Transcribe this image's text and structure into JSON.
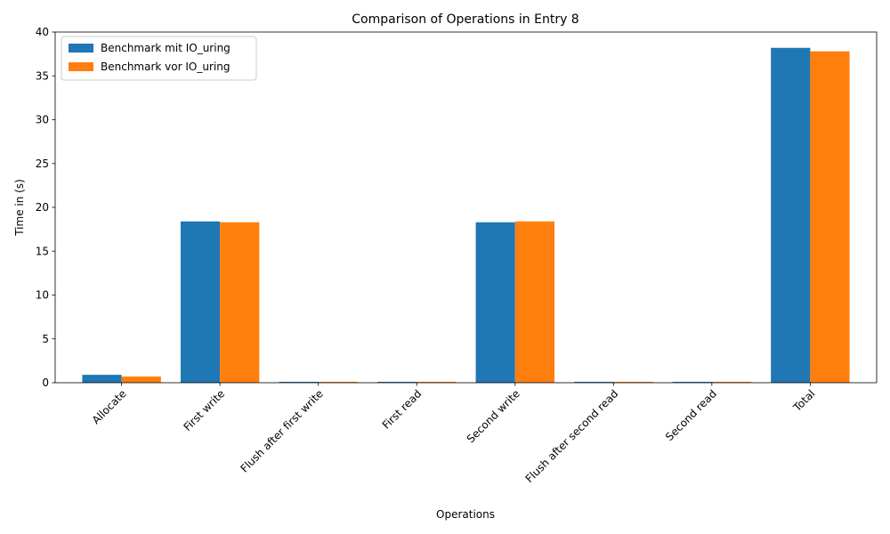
{
  "chart_data": {
    "type": "bar",
    "title": "Comparison of Operations in Entry 8",
    "xlabel": "Operations",
    "ylabel": "Time in (s)",
    "categories": [
      "Allocate",
      "First write",
      "Flush after first write",
      "First read",
      "Second write",
      "Flush after second read",
      "Second read",
      "Total"
    ],
    "series": [
      {
        "name": "Benchmark mit IO_uring",
        "color": "#1f77b4",
        "values": [
          0.9,
          18.4,
          0.1,
          0.1,
          18.3,
          0.1,
          0.1,
          38.2
        ]
      },
      {
        "name": "Benchmark vor IO_uring",
        "color": "#ff7f0e",
        "values": [
          0.7,
          18.3,
          0.1,
          0.1,
          18.4,
          0.1,
          0.1,
          37.8
        ]
      }
    ],
    "ylim": [
      0,
      40
    ],
    "yticks": [
      0,
      5,
      10,
      15,
      20,
      25,
      30,
      35,
      40
    ],
    "grid": false,
    "legend_position": "top-left"
  }
}
